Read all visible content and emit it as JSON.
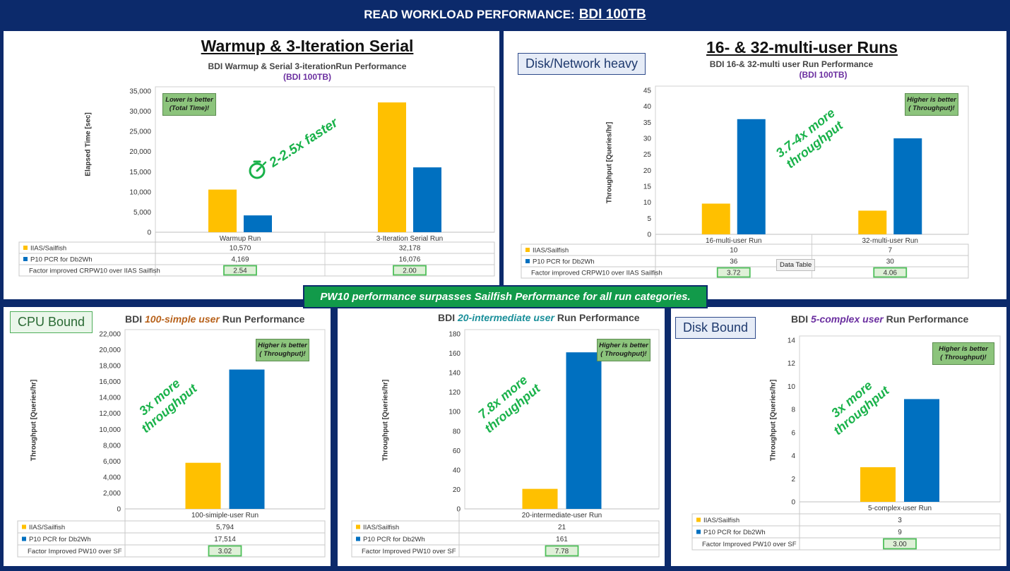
{
  "banner": {
    "title": "READ WORKLOAD PERFORMANCE:",
    "title_link": "BDI 100TB"
  },
  "footer_message": "PW10 performance surpasses Sailfish Performance for all run categories.",
  "tooltip": "Data Table",
  "colors": {
    "iias": "#ffc000",
    "p10": "#0070c0",
    "accent_green": "#19b24a",
    "navy": "#0c2a6b"
  },
  "panels": [
    {
      "id": "p1",
      "panel_title": "Warmup & 3-Iteration Serial",
      "chart_title_line1": "BDI Warmup & Serial 3-iterationRun Performance",
      "chart_title_line2": "(BDI 100TB)",
      "note": [
        "Lower is better",
        "(Total Time)!"
      ],
      "callout": [
        "2-2.5x faster"
      ],
      "callout_icon": "stopwatch-icon",
      "factor_label": "Factor improved CRPW10 over IIAS Sailfish"
    },
    {
      "id": "p2",
      "panel_title": "16- & 32-multi-user Runs",
      "tag": "Disk/Network heavy",
      "chart_title_line1": "BDI 16-& 32-multi user Run Performance",
      "chart_title_line2": "(BDI 100TB)",
      "note": [
        "Higher is better",
        "( Throughput)!"
      ],
      "callout": [
        "3.7-4x more",
        "throughput"
      ],
      "factor_label": "Factor improved CRPW10 over IIAS Sailfish"
    },
    {
      "id": "p3",
      "tag": "CPU Bound",
      "chart_title_pre": "BDI ",
      "chart_title_em": "100-simple user",
      "chart_title_post": " Run Performance",
      "note": [
        "Higher is better",
        "( Throughput)!"
      ],
      "callout": [
        "3x more",
        "throughput"
      ],
      "factor_label": "Factor Improved PW10 over SF"
    },
    {
      "id": "p4",
      "chart_title_pre": "BDI ",
      "chart_title_em": "20-intermediate user",
      "chart_title_post": " Run Performance",
      "note": [
        "Higher is better",
        "( Throughput)!"
      ],
      "callout": [
        "7.8x more",
        "throughput"
      ],
      "factor_label": "Factor Improved PW10 over SF"
    },
    {
      "id": "p5",
      "tag": "Disk Bound",
      "chart_title_pre": "BDI ",
      "chart_title_em": "5-complex user",
      "chart_title_post": " Run Performance",
      "note": [
        "Higher is better",
        "( Throughput)!"
      ],
      "callout": [
        "3x more",
        "throughput"
      ],
      "factor_label": "Factor Improved PW10 over SF"
    }
  ],
  "chart_data": [
    {
      "type": "bar",
      "categories": [
        "Warmup Run",
        "3-Iteration Serial Run"
      ],
      "series": [
        {
          "name": "IIAS/Sailfish",
          "values": [
            10570,
            32178
          ],
          "labels": [
            "10,570",
            "32,178"
          ]
        },
        {
          "name": "P10 PCR for Db2Wh",
          "values": [
            4169,
            16076
          ],
          "labels": [
            "4,169",
            "16,076"
          ]
        }
      ],
      "factors": [
        "2.54",
        "2.00"
      ],
      "ylabel": "Elapsed Time [sec]",
      "ylim": [
        0,
        35000
      ],
      "yticks": [
        "0",
        "5,000",
        "10,000",
        "15,000",
        "20,000",
        "25,000",
        "30,000",
        "35,000"
      ]
    },
    {
      "type": "bar",
      "categories": [
        "16-multi-user Run",
        "32-multi-user Run"
      ],
      "series": [
        {
          "name": "IIAS/Sailfish",
          "values": [
            9.6,
            7.4
          ],
          "labels": [
            "10",
            "7"
          ]
        },
        {
          "name": "P10 PCR for Db2Wh",
          "values": [
            36,
            30
          ],
          "labels": [
            "36",
            "30"
          ]
        }
      ],
      "factors": [
        "3.72",
        "4.06"
      ],
      "ylabel": "Throughput [Queries/hr]",
      "ylim": [
        0,
        45
      ],
      "yticks": [
        "0",
        "5",
        "10",
        "15",
        "20",
        "25",
        "30",
        "35",
        "40",
        "45"
      ]
    },
    {
      "type": "bar",
      "categories": [
        "100-simiple-user Run"
      ],
      "series": [
        {
          "name": "IIAS/Sailfish",
          "values": [
            5794
          ],
          "labels": [
            "5,794"
          ]
        },
        {
          "name": "P10 PCR for Db2Wh",
          "values": [
            17514
          ],
          "labels": [
            "17,514"
          ]
        }
      ],
      "factors": [
        "3.02"
      ],
      "ylabel": "Throughput [Queries/hr]",
      "ylim": [
        0,
        22000
      ],
      "yticks": [
        "0",
        "2,000",
        "4,000",
        "6,000",
        "8,000",
        "10,000",
        "12,000",
        "14,000",
        "16,000",
        "18,000",
        "20,000",
        "22,000"
      ]
    },
    {
      "type": "bar",
      "categories": [
        "20-intermediate-user Run"
      ],
      "series": [
        {
          "name": "IIAS/Sailfish",
          "values": [
            20.6
          ],
          "labels": [
            "21"
          ]
        },
        {
          "name": "P10 PCR for Db2Wh",
          "values": [
            161
          ],
          "labels": [
            "161"
          ]
        }
      ],
      "factors": [
        "7.78"
      ],
      "ylabel": "Throughput [Queries/hr]",
      "ylim": [
        0,
        180
      ],
      "yticks": [
        "0",
        "20",
        "40",
        "60",
        "80",
        "100",
        "120",
        "140",
        "160",
        "180"
      ]
    },
    {
      "type": "bar",
      "categories": [
        "5-complex-user Run"
      ],
      "series": [
        {
          "name": "IIAS/Sailfish",
          "values": [
            3
          ],
          "labels": [
            "3"
          ]
        },
        {
          "name": "P10 PCR for Db2Wh",
          "values": [
            8.9
          ],
          "labels": [
            "9"
          ]
        }
      ],
      "factors": [
        "3.00"
      ],
      "ylabel": "Throughput [Queries/hr]",
      "ylim": [
        0,
        14
      ],
      "yticks": [
        "0",
        "2",
        "4",
        "6",
        "8",
        "10",
        "12",
        "14"
      ]
    }
  ]
}
